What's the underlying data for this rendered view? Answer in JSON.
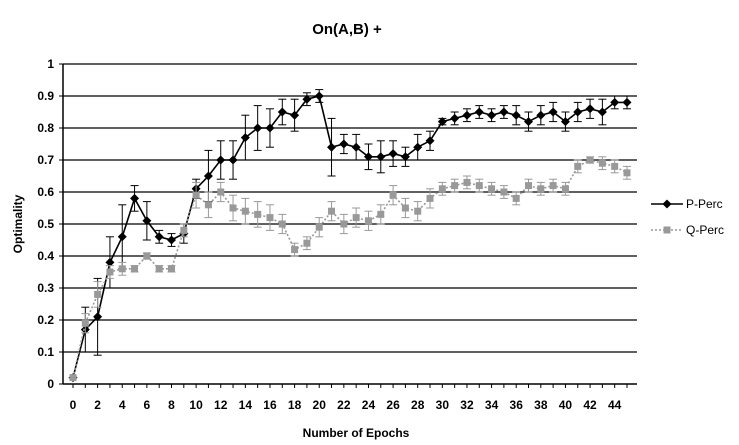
{
  "chart_data": {
    "type": "line",
    "title": "On(A,B) +",
    "xlabel": "Number of Epochs",
    "ylabel": "Optimality",
    "xlim": [
      0,
      45
    ],
    "ylim": [
      0,
      1
    ],
    "x_tick_labels": [
      "0",
      "2",
      "4",
      "6",
      "8",
      "10",
      "12",
      "14",
      "16",
      "18",
      "20",
      "22",
      "24",
      "26",
      "28",
      "30",
      "32",
      "34",
      "36",
      "38",
      "40",
      "42",
      "44"
    ],
    "y_tick_labels": [
      "0",
      "0.1",
      "0.2",
      "0.3",
      "0.4",
      "0.5",
      "0.6",
      "0.7",
      "0.8",
      "0.9",
      "1"
    ],
    "grid": "horizontal",
    "legend_position": "right",
    "x": [
      0,
      1,
      2,
      3,
      4,
      5,
      6,
      7,
      8,
      9,
      10,
      11,
      12,
      13,
      14,
      15,
      16,
      17,
      18,
      19,
      20,
      21,
      22,
      23,
      24,
      25,
      26,
      27,
      28,
      29,
      30,
      31,
      32,
      33,
      34,
      35,
      36,
      37,
      38,
      39,
      40,
      41,
      42,
      43,
      44,
      45
    ],
    "series": [
      {
        "name": "P-Perc",
        "color": "#000000",
        "marker": "diamond",
        "values": [
          0.02,
          0.17,
          0.21,
          0.38,
          0.46,
          0.58,
          0.51,
          0.46,
          0.45,
          0.47,
          0.61,
          0.65,
          0.7,
          0.7,
          0.77,
          0.8,
          0.8,
          0.85,
          0.84,
          0.89,
          0.9,
          0.74,
          0.75,
          0.74,
          0.71,
          0.71,
          0.72,
          0.71,
          0.74,
          0.76,
          0.82,
          0.83,
          0.84,
          0.85,
          0.84,
          0.85,
          0.84,
          0.82,
          0.84,
          0.85,
          0.82,
          0.85,
          0.86,
          0.85,
          0.88,
          0.88
        ],
        "errors": [
          0.0,
          0.07,
          0.12,
          0.08,
          0.1,
          0.04,
          0.06,
          0.02,
          0.02,
          0.03,
          0.03,
          0.08,
          0.06,
          0.06,
          0.07,
          0.07,
          0.06,
          0.04,
          0.05,
          0.02,
          0.02,
          0.09,
          0.03,
          0.04,
          0.04,
          0.05,
          0.04,
          0.03,
          0.04,
          0.03,
          0.01,
          0.02,
          0.02,
          0.02,
          0.02,
          0.02,
          0.03,
          0.03,
          0.03,
          0.03,
          0.03,
          0.03,
          0.03,
          0.04,
          0.02,
          0.02
        ]
      },
      {
        "name": "Q-Perc",
        "color": "#999999",
        "marker": "square",
        "values": [
          0.02,
          0.19,
          0.28,
          0.35,
          0.36,
          0.36,
          0.4,
          0.36,
          0.36,
          0.48,
          0.59,
          0.56,
          0.6,
          0.55,
          0.54,
          0.53,
          0.52,
          0.5,
          0.42,
          0.44,
          0.49,
          0.54,
          0.5,
          0.52,
          0.51,
          0.53,
          0.59,
          0.55,
          0.54,
          0.58,
          0.61,
          0.62,
          0.63,
          0.62,
          0.61,
          0.6,
          0.58,
          0.62,
          0.61,
          0.62,
          0.61,
          0.68,
          0.7,
          0.69,
          0.68,
          0.66
        ],
        "errors": [
          0.0,
          0.03,
          0.04,
          0.02,
          0.02,
          0.01,
          0.01,
          0.01,
          0.01,
          0.02,
          0.04,
          0.04,
          0.03,
          0.04,
          0.04,
          0.04,
          0.04,
          0.03,
          0.02,
          0.02,
          0.03,
          0.03,
          0.03,
          0.03,
          0.03,
          0.03,
          0.03,
          0.03,
          0.03,
          0.03,
          0.02,
          0.02,
          0.02,
          0.02,
          0.02,
          0.02,
          0.02,
          0.02,
          0.02,
          0.02,
          0.02,
          0.02,
          0.01,
          0.02,
          0.02,
          0.02
        ]
      }
    ]
  }
}
